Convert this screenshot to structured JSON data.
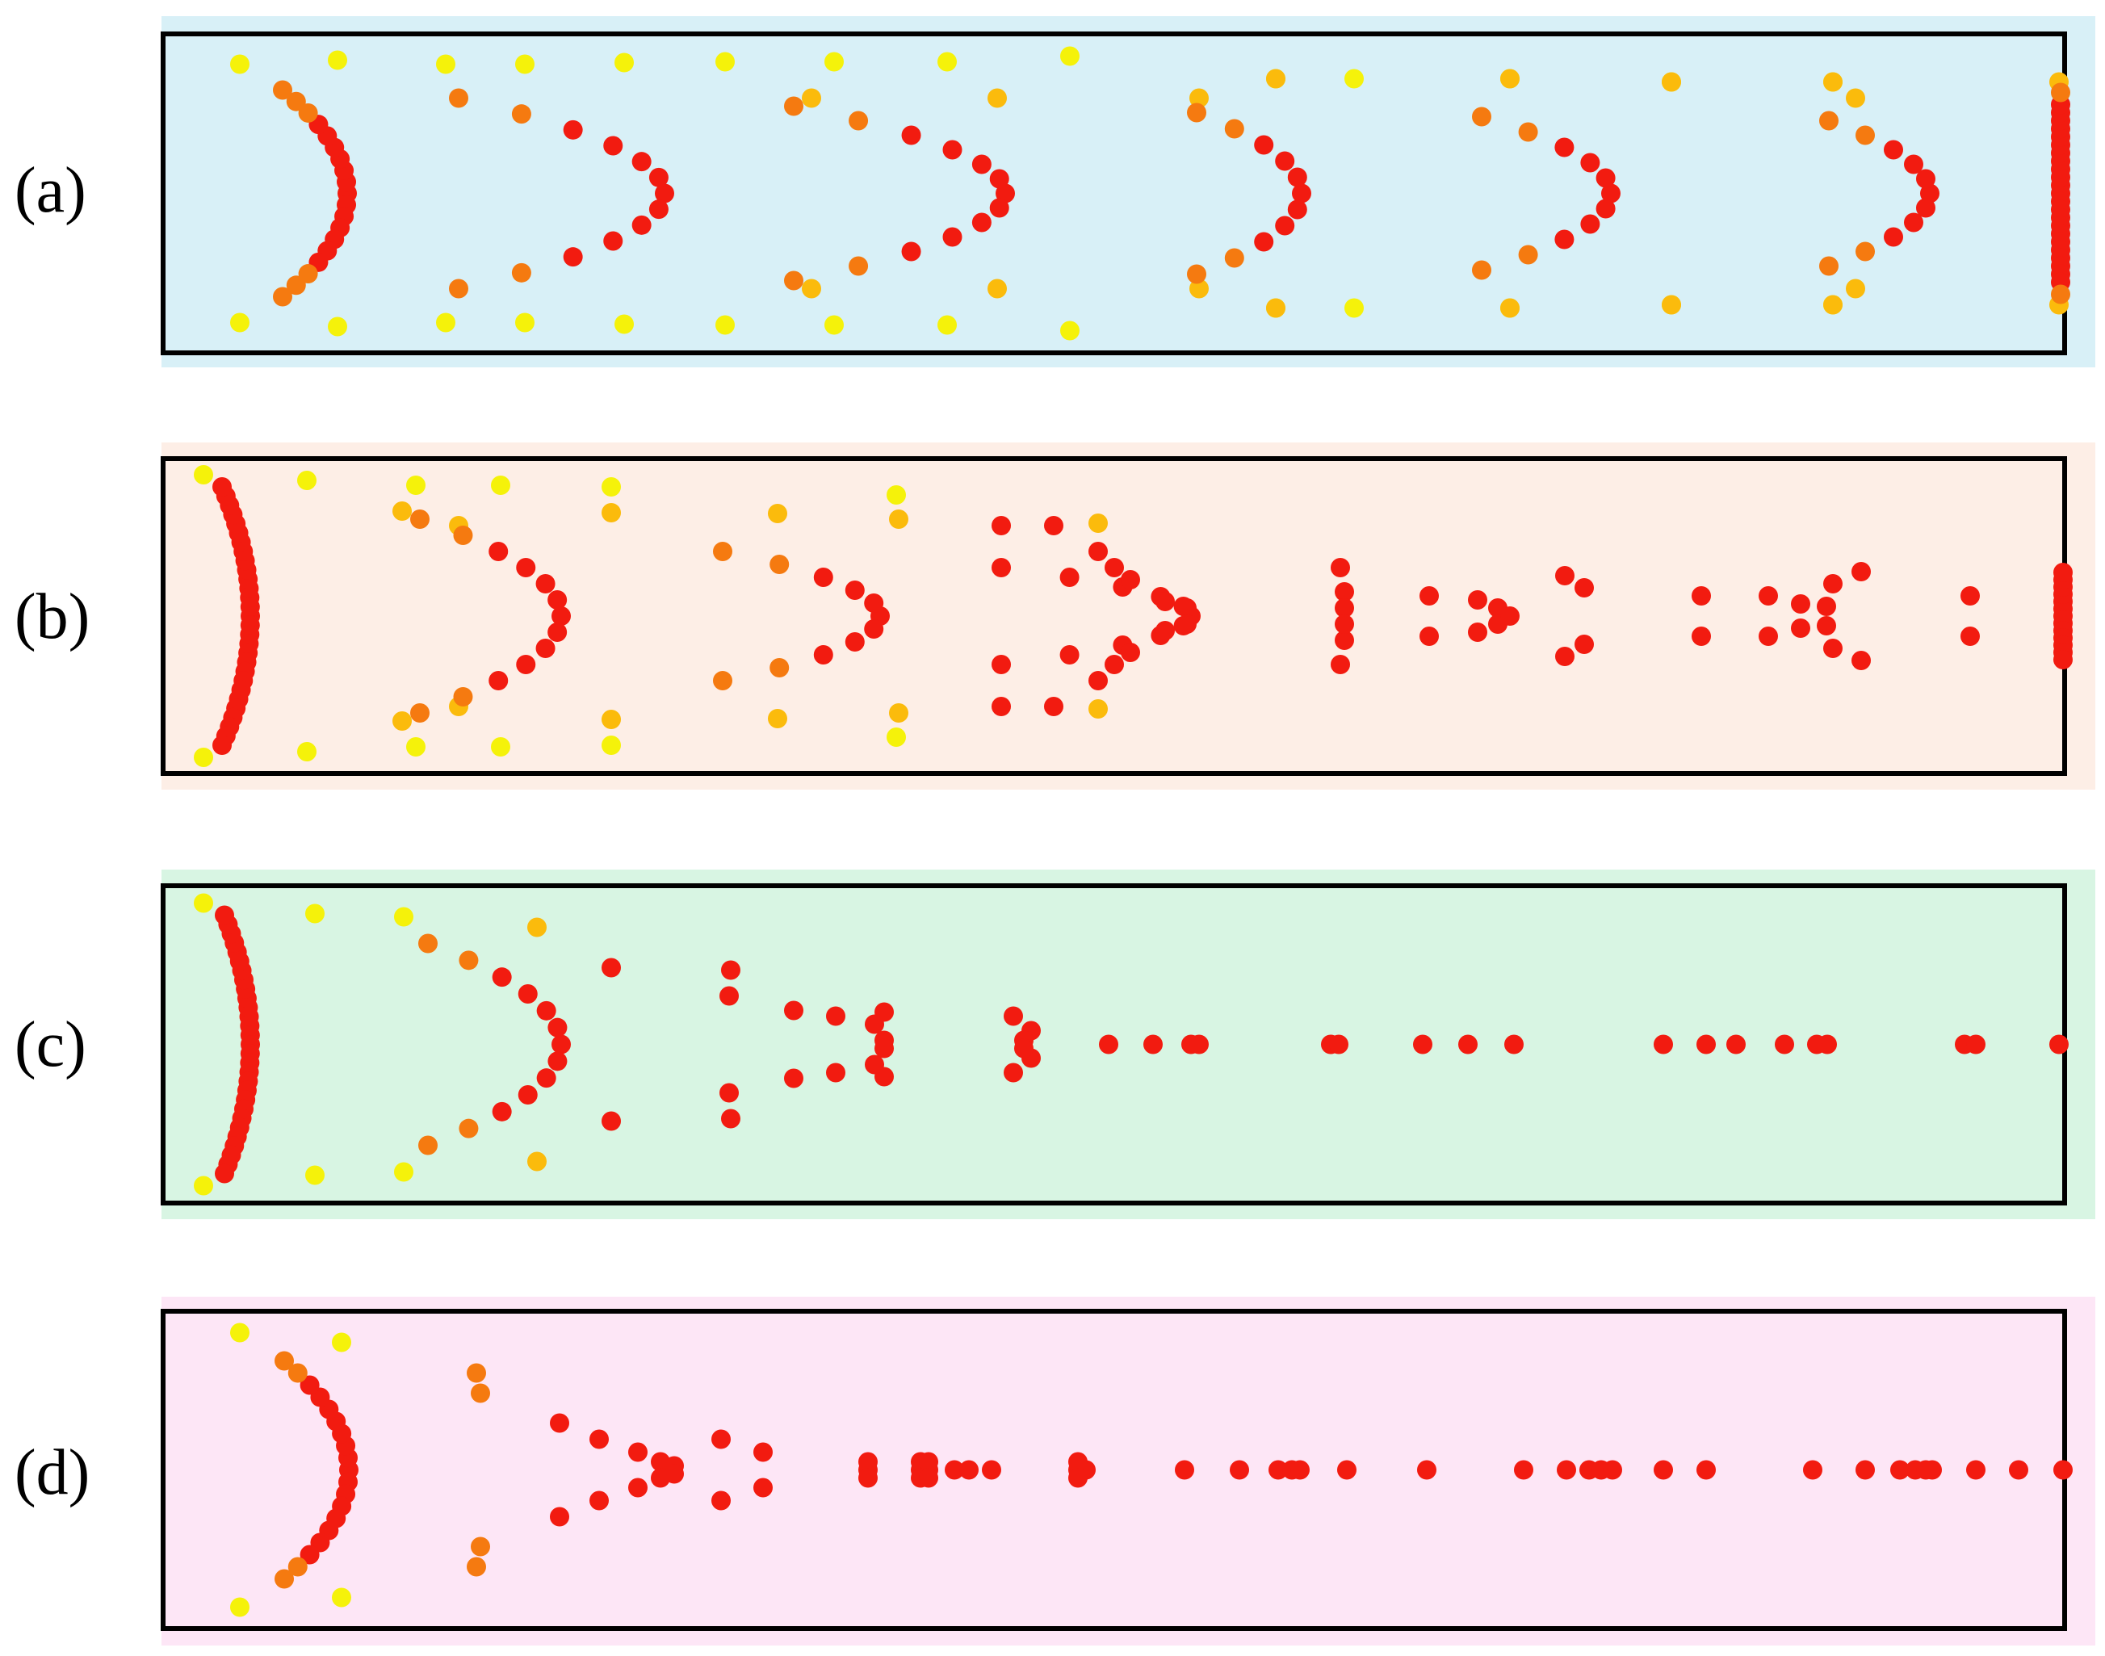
{
  "colors": {
    "dot_yellow": "#f5f20a",
    "dot_amber": "#fbbb0c",
    "dot_orange": "#f57a10",
    "dot_red": "#f21b10",
    "frame": "#000000",
    "label": "#000000"
  },
  "panels": [
    {
      "label": "(a)",
      "background": "#d8f0f7",
      "dot_groups": [
        {
          "tier": "red",
          "points": [
            [
              1,
              1
            ],
            [
              1,
              -1
            ],
            [
              3,
              2
            ],
            [
              3,
              -2
            ],
            [
              3,
              5
            ],
            [
              3,
              -5
            ],
            [
              3,
              11
            ],
            [
              3,
              -11
            ],
            [
              6,
              2
            ],
            [
              6,
              -2
            ],
            [
              6,
              7
            ],
            [
              6,
              -7
            ],
            [
              7,
              4
            ],
            [
              7,
              -4
            ],
            [
              9,
              10
            ],
            [
              9,
              -10
            ],
            [
              12,
              1
            ],
            [
              12,
              -1
            ],
            [
              12,
              6
            ],
            [
              12,
              -6
            ],
            [
              17,
              0
            ],
            [
              23,
              2
            ],
            [
              23,
              -2
            ],
            [
              23,
              12
            ],
            [
              23,
              -12
            ],
            [
              24,
              4
            ],
            [
              24,
              -4
            ],
            [
              24,
              13
            ],
            [
              24,
              -13
            ],
            [
              27,
              1
            ],
            [
              27,
              -1
            ],
            [
              27,
              6
            ],
            [
              27,
              -6
            ],
            [
              29,
              2
            ],
            [
              29,
              -2
            ],
            [
              31,
              4
            ],
            [
              31,
              -4
            ],
            [
              33,
              2
            ],
            [
              33,
              -2
            ],
            [
              35,
              0
            ]
          ]
        },
        {
          "tier": "red",
          "points": [
            [
              55,
              12
            ],
            [
              55,
              -12
            ],
            [
              58,
              5
            ],
            [
              58,
              -5
            ],
            [
              59,
              3
            ],
            [
              59,
              -3
            ],
            [
              60,
              1
            ],
            [
              60,
              -1
            ],
            [
              61,
              0
            ],
            [
              66,
              3
            ],
            [
              66,
              -3
            ],
            [
              67,
              1
            ],
            [
              67,
              -1
            ],
            [
              68,
              0
            ]
          ]
        },
        {
          "tier": "red",
          "points": [
            [
              83,
              0
            ],
            [
              83,
              1
            ],
            [
              83,
              -1
            ],
            [
              83,
              3
            ],
            [
              83,
              -3
            ],
            [
              83,
              5
            ],
            [
              83,
              -5
            ],
            [
              83,
              7
            ],
            [
              83,
              -7
            ],
            [
              83,
              9
            ],
            [
              83,
              -9
            ],
            [
              83,
              11
            ],
            [
              83,
              -11
            ],
            [
              83,
              13
            ],
            [
              83,
              -13
            ]
          ]
        },
        {
          "tier": "red",
          "points": [
            [
              20,
              2
            ],
            [
              20,
              -2
            ],
            [
              16,
              6
            ],
            [
              16,
              -6
            ],
            [
              8,
              1
            ],
            [
              8,
              -1
            ],
            [
              21,
              4
            ],
            [
              21,
              -4
            ],
            [
              22,
              1
            ],
            [
              22,
              -1
            ],
            [
              19,
              4
            ],
            [
              19,
              -4
            ]
          ]
        },
        {
          "tier": "red",
          "points": [
            [
              42,
              10
            ],
            [
              42,
              -10
            ],
            [
              47,
              1
            ],
            [
              47,
              -1
            ],
            [
              41,
              6
            ],
            [
              41,
              -6
            ],
            [
              52,
              9
            ],
            [
              52,
              -9
            ],
            [
              53,
              4
            ],
            [
              53,
              -4
            ],
            [
              37,
              5
            ],
            [
              37,
              -5
            ],
            [
              36,
              8
            ],
            [
              36,
              -8
            ],
            [
              51,
              2
            ],
            [
              51,
              -2
            ],
            [
              44,
              0
            ],
            [
              48,
              0
            ],
            [
              56,
              8
            ],
            [
              56,
              -8
            ],
            [
              63,
              6
            ],
            [
              63,
              -6
            ],
            [
              64,
              2
            ],
            [
              64,
              -2
            ],
            [
              69,
              4
            ],
            [
              69,
              -4
            ],
            [
              70,
              2
            ],
            [
              70,
              -2
            ],
            [
              74,
              9
            ],
            [
              74,
              -9
            ],
            [
              75,
              4
            ],
            [
              75,
              -4
            ],
            [
              78,
              5
            ],
            [
              78,
              -5
            ],
            [
              79,
              3
            ],
            [
              79,
              -3
            ],
            [
              80,
              1
            ],
            [
              80,
              -1
            ],
            [
              81,
              0
            ]
          ]
        }
      ]
    },
    {
      "label": "(b)",
      "background": "#fdeee6",
      "dot_groups": []
    },
    {
      "label": "(c)",
      "background": "#d8f5e3",
      "dot_groups": []
    },
    {
      "label": "(d)",
      "background": "#fde6f6",
      "dot_groups": []
    }
  ]
}
